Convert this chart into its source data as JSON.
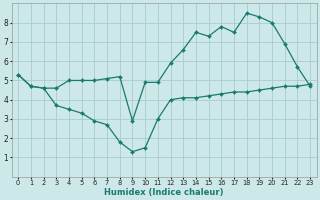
{
  "xlabel": "Humidex (Indice chaleur)",
  "background_color": "#cde8e8",
  "grid_color": "#aacccc",
  "line_color": "#1a7a6e",
  "xlim": [
    -0.5,
    23.5
  ],
  "ylim": [
    0,
    9
  ],
  "xticks": [
    0,
    1,
    2,
    3,
    4,
    5,
    6,
    7,
    8,
    9,
    10,
    11,
    12,
    13,
    14,
    15,
    16,
    17,
    18,
    19,
    20,
    21,
    22,
    23
  ],
  "yticks": [
    1,
    2,
    3,
    4,
    5,
    6,
    7,
    8
  ],
  "line1_x": [
    0,
    1,
    2,
    3,
    4,
    5,
    6,
    7,
    8,
    9,
    10,
    11,
    12,
    13,
    14,
    15,
    16,
    17,
    18,
    19,
    20,
    21,
    22,
    23
  ],
  "line1_y": [
    5.3,
    4.7,
    4.6,
    3.7,
    3.5,
    3.3,
    2.9,
    2.7,
    1.8,
    1.3,
    1.5,
    3.0,
    4.0,
    4.1,
    4.1,
    4.2,
    4.3,
    4.4,
    4.4,
    4.5,
    4.6,
    4.7,
    4.7,
    4.8
  ],
  "line2_x": [
    0,
    1,
    2,
    3,
    4,
    5,
    6,
    7,
    8,
    9,
    10,
    11,
    12,
    13,
    14,
    15,
    16,
    17,
    18,
    19,
    20,
    21,
    22,
    23
  ],
  "line2_y": [
    5.3,
    4.7,
    4.6,
    4.6,
    5.0,
    5.0,
    5.0,
    5.1,
    5.2,
    2.9,
    4.9,
    4.9,
    5.9,
    6.6,
    7.5,
    7.3,
    7.8,
    7.5,
    8.5,
    8.3,
    8.0,
    6.9,
    5.7,
    4.7
  ]
}
